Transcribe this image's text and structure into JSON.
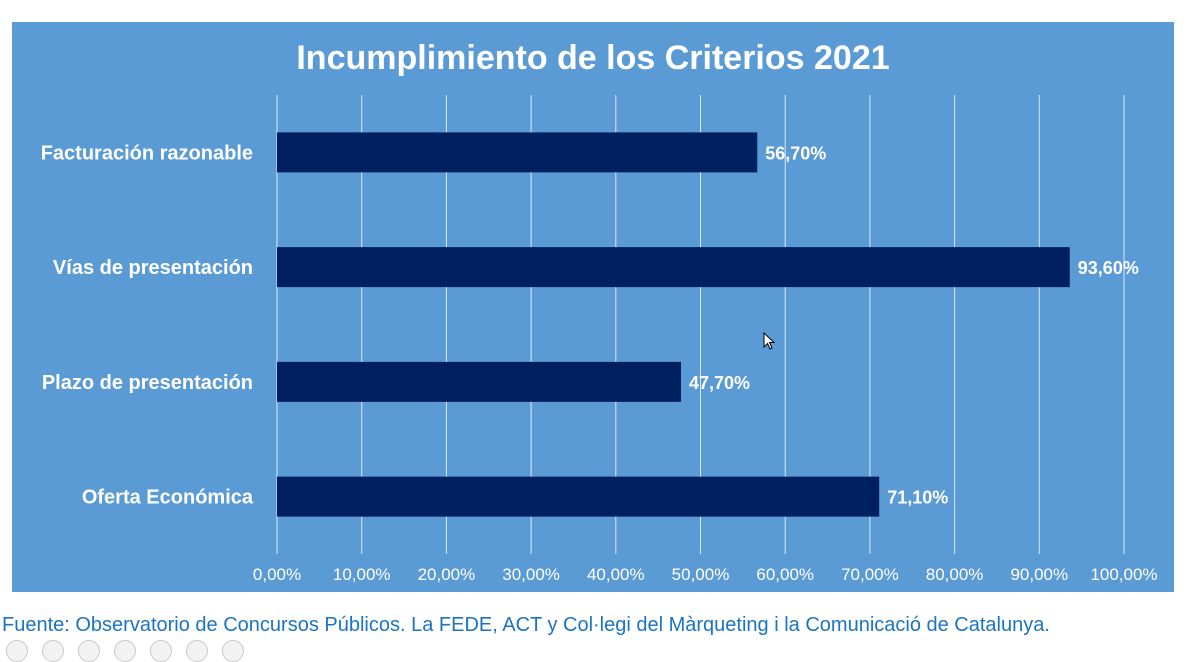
{
  "chart_data": {
    "type": "bar",
    "orientation": "horizontal",
    "title": "Incumplimiento de los Criterios 2021",
    "categories": [
      "Facturación razonable",
      "Vías de presentación",
      "Plazo de presentación",
      "Oferta Económica"
    ],
    "values": [
      56.7,
      93.6,
      47.7,
      71.1
    ],
    "data_labels": [
      "56,70%",
      "93,60%",
      "47,70%",
      "71,10%"
    ],
    "xlim": [
      0,
      100
    ],
    "xticks": [
      0,
      10,
      20,
      30,
      40,
      50,
      60,
      70,
      80,
      90,
      100
    ],
    "xtick_labels": [
      "0,00%",
      "10,00%",
      "20,00%",
      "30,00%",
      "40,00%",
      "50,00%",
      "60,00%",
      "70,00%",
      "80,00%",
      "90,00%",
      "100,00%"
    ],
    "grid": true,
    "xlabel": "",
    "ylabel": "",
    "colors": {
      "background": "#5b9bd5",
      "bar": "#002060",
      "text": "#ffffff"
    }
  },
  "footer": {
    "source": "Fuente: Observatorio de Concursos Públicos. La FEDE, ACT y Col·legi del Màrqueting i la Comunicació de Catalunya."
  },
  "player_controls": [
    "previous-icon",
    "play-icon",
    "pen-icon",
    "slides-icon",
    "zoom-icon",
    "subtitles-icon",
    "more-icon"
  ]
}
